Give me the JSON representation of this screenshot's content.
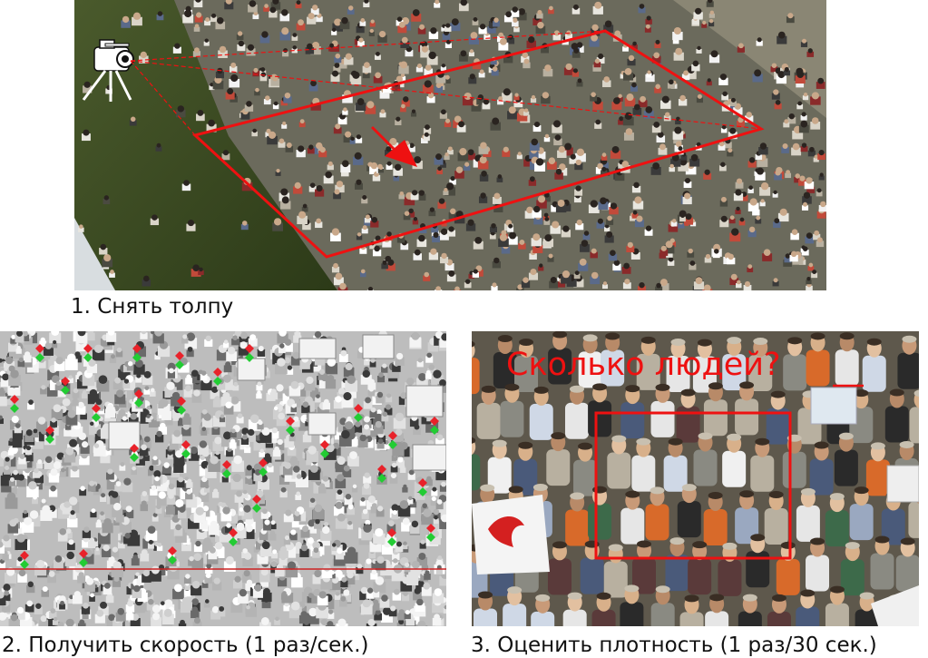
{
  "steps": [
    {
      "caption": "1. Снять толпу"
    },
    {
      "caption": "2. Получить скорость (1 раз/сек.)"
    },
    {
      "caption": "3. Оценить плотность (1 раз/30 сек.)",
      "overlay_question": "Сколько людей?"
    }
  ],
  "colors": {
    "annotation_red": "#ee1111",
    "flow_marker_red": "#e8222a",
    "flow_marker_green": "#22cc33"
  }
}
